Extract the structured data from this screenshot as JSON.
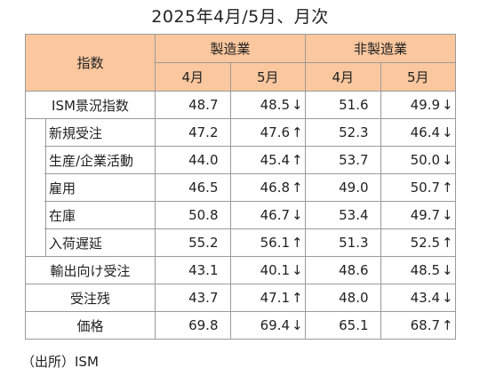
{
  "title": "2025年4月/5月、月次",
  "table": {
    "label_header": "指数",
    "groups": [
      {
        "name": "製造業",
        "months": [
          "4月",
          "5月"
        ]
      },
      {
        "name": "非製造業",
        "months": [
          "4月",
          "5月"
        ]
      }
    ],
    "rows": [
      {
        "label": "ISM景況指数",
        "values": [
          "48.7",
          "48.5",
          "51.6",
          "49.9"
        ],
        "arrows": [
          "",
          "↓",
          "",
          "↓"
        ]
      },
      {
        "label": "新規受注",
        "values": [
          "47.2",
          "47.6",
          "52.3",
          "46.4"
        ],
        "arrows": [
          "",
          "↑",
          "",
          "↓"
        ]
      },
      {
        "label": "生産/企業活動",
        "values": [
          "44.0",
          "45.4",
          "53.7",
          "50.0"
        ],
        "arrows": [
          "",
          "↑",
          "",
          "↓"
        ]
      },
      {
        "label": "雇用",
        "values": [
          "46.5",
          "46.8",
          "49.0",
          "50.7"
        ],
        "arrows": [
          "",
          "↑",
          "",
          "↑"
        ]
      },
      {
        "label": "在庫",
        "values": [
          "50.8",
          "46.7",
          "53.4",
          "49.7"
        ],
        "arrows": [
          "",
          "↓",
          "",
          "↓"
        ]
      },
      {
        "label": "入荷遅延",
        "values": [
          "55.2",
          "56.1",
          "51.3",
          "52.5"
        ],
        "arrows": [
          "",
          "↑",
          "",
          "↑"
        ]
      },
      {
        "label": "輸出向け受注",
        "values": [
          "43.1",
          "40.1",
          "48.6",
          "48.5"
        ],
        "arrows": [
          "",
          "↓",
          "",
          "↓"
        ]
      },
      {
        "label": "受注残",
        "values": [
          "43.7",
          "47.1",
          "48.0",
          "43.4"
        ],
        "arrows": [
          "",
          "↑",
          "",
          "↓"
        ]
      },
      {
        "label": "価格",
        "values": [
          "69.8",
          "69.4",
          "65.1",
          "68.7"
        ],
        "arrows": [
          "",
          "↓",
          "",
          "↑"
        ]
      }
    ]
  },
  "source": "（出所）ISM",
  "colors": {
    "header_bg": "#fbc79e",
    "border": "#9a9a9a"
  }
}
